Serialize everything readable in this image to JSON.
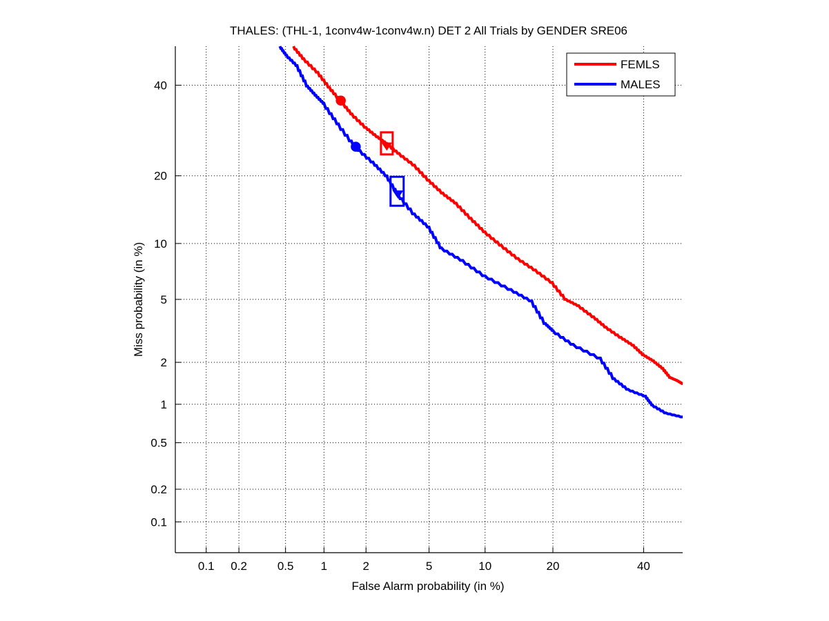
{
  "chart_data": {
    "type": "line",
    "scale": "probit",
    "title": "THALES: (THL-1, 1conv4w-1conv4w.n) DET 2 All Trials by GENDER SRE06",
    "xlabel": "False Alarm probability (in %)",
    "ylabel": "Miss probability (in %)",
    "xlim": [
      0.05,
      50
    ],
    "ylim": [
      0.05,
      50
    ],
    "grid": true,
    "legend_position": "top-right",
    "xticks": [
      0.1,
      0.2,
      0.5,
      1,
      2,
      5,
      10,
      20,
      40
    ],
    "xtick_labels": [
      "0.1",
      "0.2",
      "0.5",
      "1",
      "2",
      "5",
      "10",
      "20",
      "40"
    ],
    "yticks": [
      0.1,
      0.2,
      0.5,
      1,
      2,
      5,
      10,
      20,
      40
    ],
    "ytick_labels": [
      "0.1",
      "0.2",
      "0.5",
      "1",
      "2",
      "5",
      "10",
      "20",
      "40"
    ],
    "series": [
      {
        "name": "FEMLS",
        "color": "#ff0000",
        "x": [
          0.58,
          0.7,
          0.9,
          1.1,
          1.33,
          1.6,
          2.0,
          2.4,
          2.75,
          3.3,
          4.1,
          5.0,
          6.0,
          7.1,
          8.5,
          10.0,
          12.0,
          14.3,
          17.0,
          19.9,
          22.5,
          25.0,
          28.2,
          31.0,
          34.5,
          37.5,
          40.0,
          42.5,
          44.9,
          46.8,
          48.5,
          50.0
        ],
        "y": [
          50.0,
          46.8,
          43.3,
          39.5,
          36.2,
          33.0,
          29.9,
          27.8,
          26.4,
          24.3,
          22.0,
          19.2,
          17.0,
          15.4,
          13.2,
          11.4,
          9.8,
          8.4,
          7.3,
          6.25,
          5.0,
          4.6,
          3.94,
          3.4,
          2.93,
          2.6,
          2.25,
          2.05,
          1.82,
          1.57,
          1.5,
          1.42
        ]
      },
      {
        "name": "MALES",
        "color": "#0000ff",
        "x": [
          0.45,
          0.51,
          0.62,
          0.75,
          0.87,
          1.0,
          1.28,
          1.7,
          2.23,
          2.75,
          3.24,
          4.1,
          5.0,
          5.9,
          7.7,
          10.0,
          13.3,
          16.4,
          18.7,
          20.0,
          23.9,
          29.7,
          32.9,
          36.2,
          40.5,
          42.2,
          45.7,
          50.0
        ],
        "y": [
          50.0,
          47.7,
          45.0,
          39.8,
          37.5,
          35.5,
          30.7,
          25.7,
          22.6,
          20.0,
          16.9,
          13.8,
          12.0,
          9.5,
          8.2,
          6.8,
          5.7,
          4.9,
          3.58,
          3.24,
          2.64,
          2.14,
          1.54,
          1.29,
          1.15,
          0.99,
          0.86,
          0.8
        ]
      }
    ],
    "markers": [
      {
        "series": "FEMLS",
        "shape": "circle",
        "x": 1.33,
        "y": 36.2
      },
      {
        "series": "FEMLS",
        "shape": "square",
        "x": 2.75,
        "y": 26.4
      },
      {
        "series": "FEMLS",
        "shape": "triangle",
        "x": 2.75,
        "y": 25.9
      },
      {
        "series": "MALES",
        "shape": "circle",
        "x": 1.7,
        "y": 25.7
      },
      {
        "series": "MALES",
        "shape": "square",
        "x": 3.2,
        "y": 17.3
      },
      {
        "series": "MALES",
        "shape": "triangle",
        "x": 3.24,
        "y": 16.9
      }
    ]
  }
}
